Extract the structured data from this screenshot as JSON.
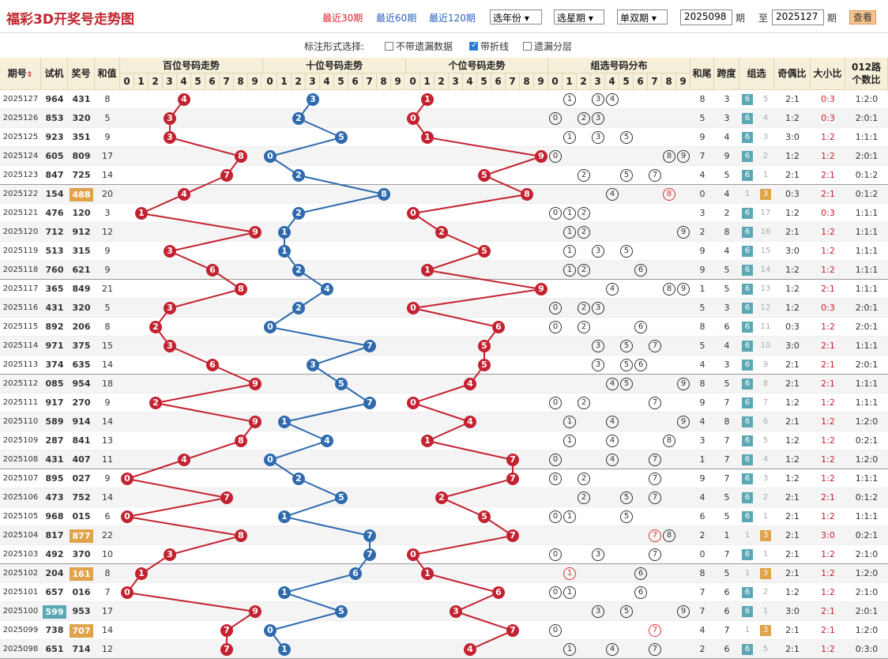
{
  "header": {
    "title": "福彩3D开奖号走势图",
    "links": [
      "最近30期",
      "最近60期",
      "最近120期"
    ],
    "active_link": 0,
    "selects": [
      "选年份",
      "选星期",
      "单双期"
    ],
    "from_value": "2025098",
    "period_label": "期",
    "to_label": "至",
    "to_value": "2025127",
    "period_label2": "期",
    "query_button": "查看"
  },
  "options": {
    "label": "标注形式选择:",
    "items": [
      {
        "label": "不带遗漏数据",
        "checked": false
      },
      {
        "label": "带折线",
        "checked": true
      },
      {
        "label": "遗漏分层",
        "checked": false
      }
    ]
  },
  "columns": {
    "period": "期号",
    "sort_icon": "sort-icon",
    "trial": "试机",
    "prize": "奖号",
    "sum": "和值",
    "hundreds": "百位号码走势",
    "tens": "十位号码走势",
    "units": "个位号码走势",
    "group": "组选号码分布",
    "tail": "和尾",
    "span": "跨度",
    "groupsel": "组选",
    "oddeven": "奇偶比",
    "bigsmall": "大小比",
    "road1": "012路",
    "road2": "个数比",
    "digits": [
      "0",
      "1",
      "2",
      "3",
      "4",
      "5",
      "6",
      "7",
      "8",
      "9"
    ]
  },
  "colors": {
    "red": "#c32230",
    "blue": "#2e6aad",
    "header_bg": "#f6efd9",
    "tag6": "#5ba8b5",
    "tag3": "#e0a24a",
    "odd_row": "#ffffff",
    "even_row": "#f4f4f4"
  },
  "rows": [
    {
      "p": "2025127",
      "t": "964",
      "n": "431",
      "s": "8",
      "tail": "8",
      "span": "3",
      "g": "6",
      "gm": "5",
      "oe": "2:1",
      "bs": "0:3",
      "r": "1:2:0"
    },
    {
      "p": "2025126",
      "t": "853",
      "n": "320",
      "s": "5",
      "tail": "5",
      "span": "3",
      "g": "6",
      "gm": "4",
      "oe": "1:2",
      "bs": "0:3",
      "r": "2:0:1"
    },
    {
      "p": "2025125",
      "t": "923",
      "n": "351",
      "s": "9",
      "tail": "9",
      "span": "4",
      "g": "6",
      "gm": "3",
      "oe": "3:0",
      "bs": "1:2",
      "r": "1:1:1"
    },
    {
      "p": "2025124",
      "t": "605",
      "n": "809",
      "s": "17",
      "tail": "7",
      "span": "9",
      "g": "6",
      "gm": "2",
      "oe": "1:2",
      "bs": "1:2",
      "r": "2:0:1"
    },
    {
      "p": "2025123",
      "t": "847",
      "n": "725",
      "s": "14",
      "tail": "4",
      "span": "5",
      "g": "6",
      "gm": "1",
      "oe": "2:1",
      "bs": "2:1",
      "r": "0:1:2"
    },
    {
      "p": "2025122",
      "t": "154",
      "n": "488",
      "s": "20",
      "tail": "0",
      "span": "4",
      "g": "3",
      "gm": "1",
      "oe": "0:3",
      "bs": "2:1",
      "r": "0:1:2",
      "nhl": "3"
    },
    {
      "p": "2025121",
      "t": "476",
      "n": "120",
      "s": "3",
      "tail": "3",
      "span": "2",
      "g": "6",
      "gm": "17",
      "oe": "1:2",
      "bs": "0:3",
      "r": "1:1:1"
    },
    {
      "p": "2025120",
      "t": "712",
      "n": "912",
      "s": "12",
      "tail": "2",
      "span": "8",
      "g": "6",
      "gm": "16",
      "oe": "2:1",
      "bs": "1:2",
      "r": "1:1:1"
    },
    {
      "p": "2025119",
      "t": "513",
      "n": "315",
      "s": "9",
      "tail": "9",
      "span": "4",
      "g": "6",
      "gm": "15",
      "oe": "3:0",
      "bs": "1:2",
      "r": "1:1:1"
    },
    {
      "p": "2025118",
      "t": "760",
      "n": "621",
      "s": "9",
      "tail": "9",
      "span": "5",
      "g": "6",
      "gm": "14",
      "oe": "1:2",
      "bs": "1:2",
      "r": "1:1:1"
    },
    {
      "p": "2025117",
      "t": "365",
      "n": "849",
      "s": "21",
      "tail": "1",
      "span": "5",
      "g": "6",
      "gm": "13",
      "oe": "1:2",
      "bs": "2:1",
      "r": "1:1:1"
    },
    {
      "p": "2025116",
      "t": "431",
      "n": "320",
      "s": "5",
      "tail": "5",
      "span": "3",
      "g": "6",
      "gm": "12",
      "oe": "1:2",
      "bs": "0:3",
      "r": "2:0:1"
    },
    {
      "p": "2025115",
      "t": "892",
      "n": "206",
      "s": "8",
      "tail": "8",
      "span": "6",
      "g": "6",
      "gm": "11",
      "oe": "0:3",
      "bs": "1:2",
      "r": "2:0:1"
    },
    {
      "p": "2025114",
      "t": "971",
      "n": "375",
      "s": "15",
      "tail": "5",
      "span": "4",
      "g": "6",
      "gm": "10",
      "oe": "3:0",
      "bs": "2:1",
      "r": "1:1:1"
    },
    {
      "p": "2025113",
      "t": "374",
      "n": "635",
      "s": "14",
      "tail": "4",
      "span": "3",
      "g": "6",
      "gm": "9",
      "oe": "2:1",
      "bs": "2:1",
      "r": "2:0:1"
    },
    {
      "p": "2025112",
      "t": "085",
      "n": "954",
      "s": "18",
      "tail": "8",
      "span": "5",
      "g": "6",
      "gm": "8",
      "oe": "2:1",
      "bs": "2:1",
      "r": "1:1:1"
    },
    {
      "p": "2025111",
      "t": "917",
      "n": "270",
      "s": "9",
      "tail": "9",
      "span": "7",
      "g": "6",
      "gm": "7",
      "oe": "1:2",
      "bs": "1:2",
      "r": "1:1:1"
    },
    {
      "p": "2025110",
      "t": "589",
      "n": "914",
      "s": "14",
      "tail": "4",
      "span": "8",
      "g": "6",
      "gm": "6",
      "oe": "2:1",
      "bs": "1:2",
      "r": "1:2:0"
    },
    {
      "p": "2025109",
      "t": "287",
      "n": "841",
      "s": "13",
      "tail": "3",
      "span": "7",
      "g": "6",
      "gm": "5",
      "oe": "1:2",
      "bs": "1:2",
      "r": "0:2:1"
    },
    {
      "p": "2025108",
      "t": "431",
      "n": "407",
      "s": "11",
      "tail": "1",
      "span": "7",
      "g": "6",
      "gm": "4",
      "oe": "1:2",
      "bs": "1:2",
      "r": "1:2:0"
    },
    {
      "p": "2025107",
      "t": "895",
      "n": "027",
      "s": "9",
      "tail": "9",
      "span": "7",
      "g": "6",
      "gm": "3",
      "oe": "1:2",
      "bs": "1:2",
      "r": "1:1:1"
    },
    {
      "p": "2025106",
      "t": "473",
      "n": "752",
      "s": "14",
      "tail": "4",
      "span": "5",
      "g": "6",
      "gm": "2",
      "oe": "2:1",
      "bs": "2:1",
      "r": "0:1:2"
    },
    {
      "p": "2025105",
      "t": "968",
      "n": "015",
      "s": "6",
      "tail": "6",
      "span": "5",
      "g": "6",
      "gm": "1",
      "oe": "2:1",
      "bs": "1:2",
      "r": "1:1:1"
    },
    {
      "p": "2025104",
      "t": "817",
      "n": "877",
      "s": "22",
      "tail": "2",
      "span": "1",
      "g": "3",
      "gm": "1",
      "oe": "2:1",
      "bs": "3:0",
      "r": "0:2:1",
      "nhl": "3"
    },
    {
      "p": "2025103",
      "t": "492",
      "n": "370",
      "s": "10",
      "tail": "0",
      "span": "7",
      "g": "6",
      "gm": "1",
      "oe": "2:1",
      "bs": "1:2",
      "r": "2:1:0"
    },
    {
      "p": "2025102",
      "t": "204",
      "n": "161",
      "s": "8",
      "tail": "8",
      "span": "5",
      "g": "3",
      "gm": "1",
      "oe": "2:1",
      "bs": "1:2",
      "r": "1:2:0",
      "nhl": "3"
    },
    {
      "p": "2025101",
      "t": "657",
      "n": "016",
      "s": "7",
      "tail": "7",
      "span": "6",
      "g": "6",
      "gm": "2",
      "oe": "1:2",
      "bs": "1:2",
      "r": "2:1:0"
    },
    {
      "p": "2025100",
      "t": "599",
      "n": "953",
      "s": "17",
      "tail": "7",
      "span": "6",
      "g": "6",
      "gm": "1",
      "oe": "3:0",
      "bs": "2:1",
      "r": "2:0:1",
      "thl": "6"
    },
    {
      "p": "2025099",
      "t": "738",
      "n": "707",
      "s": "14",
      "tail": "4",
      "span": "7",
      "g": "3",
      "gm": "1",
      "oe": "2:1",
      "bs": "2:1",
      "r": "1:2:0",
      "nhl": "3"
    },
    {
      "p": "2025098",
      "t": "651",
      "n": "714",
      "s": "12",
      "tail": "2",
      "span": "6",
      "g": "6",
      "gm": "5",
      "oe": "2:1",
      "bs": "1:2",
      "r": "0:3:0"
    }
  ]
}
